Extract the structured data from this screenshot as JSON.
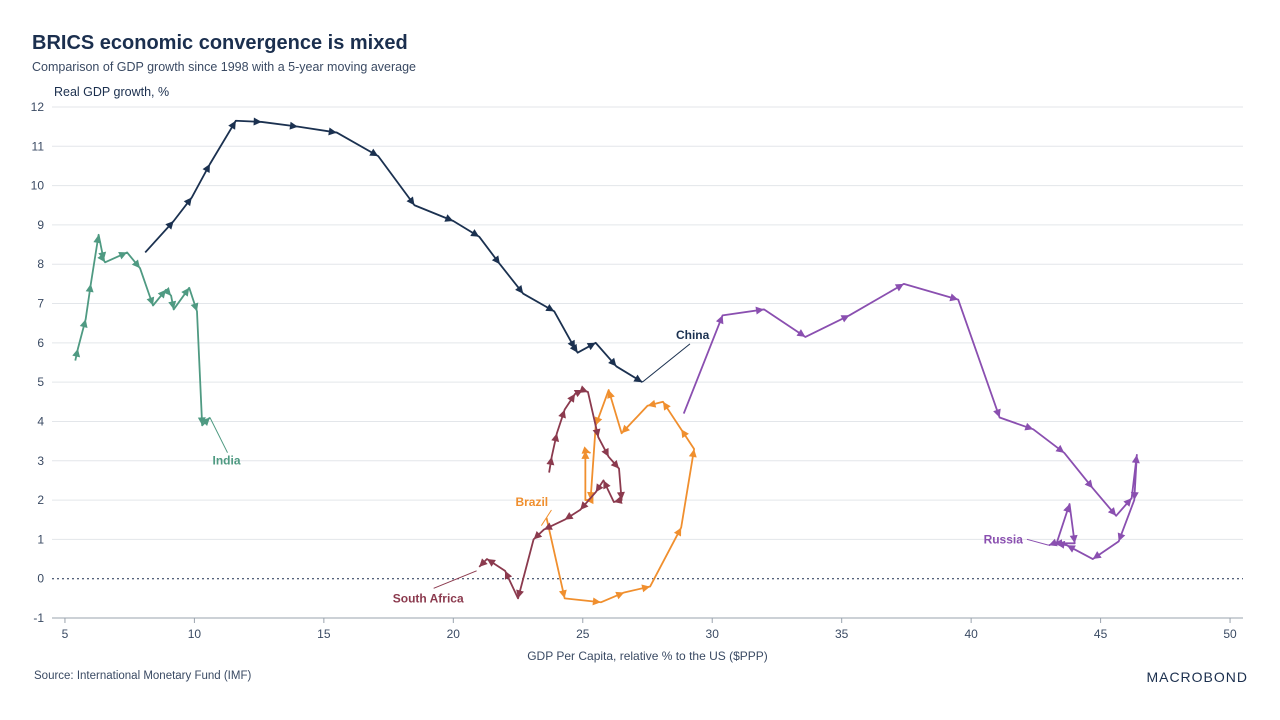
{
  "header": {
    "title": "BRICS economic convergence is mixed",
    "subtitle": "Comparison of GDP growth since 1998 with a 5-year moving average"
  },
  "footer": {
    "source": "Source: International Monetary Fund (IMF)",
    "brand": "MACROBOND"
  },
  "chart_data": {
    "type": "line",
    "title": "BRICS economic convergence is mixed",
    "subtitle": "Comparison of GDP growth since 1998 with a 5-year moving average",
    "xlabel": "GDP Per Capita, relative % to the US ($PPP)",
    "ylabel": "Real GDP growth, %",
    "xlim": [
      4.5,
      50.5
    ],
    "ylim": [
      -1,
      12
    ],
    "xticks": [
      5,
      10,
      15,
      20,
      25,
      30,
      35,
      40,
      45,
      50
    ],
    "yticks": [
      -1,
      0,
      1,
      2,
      3,
      4,
      5,
      6,
      7,
      8,
      9,
      10,
      11,
      12
    ],
    "grid": true,
    "zero_line": "dotted",
    "series": [
      {
        "name": "China",
        "color": "#1b3150",
        "points": [
          [
            8.1,
            8.3
          ],
          [
            9.2,
            9.1
          ],
          [
            9.9,
            9.7
          ],
          [
            10.6,
            10.55
          ],
          [
            11.6,
            11.65
          ],
          [
            12.6,
            11.62
          ],
          [
            14.0,
            11.5
          ],
          [
            15.5,
            11.35
          ],
          [
            17.1,
            10.75
          ],
          [
            18.5,
            9.5
          ],
          [
            20.0,
            9.1
          ],
          [
            21.0,
            8.7
          ],
          [
            21.8,
            8.0
          ],
          [
            22.7,
            7.25
          ],
          [
            23.9,
            6.8
          ],
          [
            24.7,
            5.85
          ],
          [
            24.8,
            5.75
          ],
          [
            25.5,
            6.0
          ],
          [
            26.3,
            5.4
          ],
          [
            27.3,
            5.0
          ]
        ],
        "label": "China",
        "label_at": [
          28.6,
          6.1
        ],
        "leader_to": [
          27.3,
          5.0
        ]
      },
      {
        "name": "India",
        "color": "#4f9a82",
        "points": [
          [
            5.4,
            5.55
          ],
          [
            5.5,
            5.85
          ],
          [
            5.8,
            6.6
          ],
          [
            6.0,
            7.5
          ],
          [
            6.3,
            8.75
          ],
          [
            6.5,
            8.1
          ],
          [
            6.55,
            8.05
          ],
          [
            7.4,
            8.3
          ],
          [
            7.9,
            7.9
          ],
          [
            8.4,
            6.95
          ],
          [
            8.9,
            7.35
          ],
          [
            9.1,
            7.2
          ],
          [
            9.2,
            6.85
          ],
          [
            9.8,
            7.4
          ],
          [
            10.1,
            6.8
          ],
          [
            10.3,
            3.9
          ],
          [
            10.6,
            4.1
          ]
        ],
        "label": "India",
        "label_at": [
          10.7,
          2.9
        ],
        "leader_to": [
          10.6,
          4.1
        ]
      },
      {
        "name": "Brazil",
        "color": "#f08f2e",
        "points": [
          [
            23.6,
            1.55
          ],
          [
            24.3,
            -0.5
          ],
          [
            25.7,
            -0.6
          ],
          [
            26.6,
            -0.35
          ],
          [
            27.6,
            -0.2
          ],
          [
            28.8,
            1.3
          ],
          [
            29.3,
            3.3
          ],
          [
            28.8,
            3.8
          ],
          [
            28.1,
            4.5
          ],
          [
            27.5,
            4.4
          ],
          [
            26.5,
            3.7
          ],
          [
            26.0,
            4.8
          ],
          [
            25.5,
            3.9
          ],
          [
            25.3,
            2.0
          ],
          [
            25.1,
            2.0
          ],
          [
            25.1,
            3.25
          ],
          [
            25.3,
            3.2
          ]
        ],
        "label": "Brazil",
        "label_at": [
          22.4,
          1.85
        ],
        "leader_to": [
          23.4,
          1.35
        ]
      },
      {
        "name": "South Africa",
        "color": "#8b3a4e",
        "points": [
          [
            23.7,
            2.7
          ],
          [
            23.8,
            3.1
          ],
          [
            24.0,
            3.7
          ],
          [
            24.3,
            4.3
          ],
          [
            24.7,
            4.7
          ],
          [
            25.0,
            4.8
          ],
          [
            25.2,
            4.75
          ],
          [
            25.6,
            3.6
          ],
          [
            26.0,
            3.1
          ],
          [
            26.4,
            2.8
          ],
          [
            26.5,
            2.0
          ],
          [
            26.2,
            1.95
          ],
          [
            25.8,
            2.5
          ],
          [
            25.5,
            2.2
          ],
          [
            24.9,
            1.75
          ],
          [
            24.3,
            1.5
          ],
          [
            23.5,
            1.25
          ],
          [
            23.1,
            1.0
          ],
          [
            22.5,
            -0.5
          ],
          [
            22.0,
            0.2
          ],
          [
            21.3,
            0.5
          ],
          [
            21.0,
            0.3
          ]
        ],
        "label": "South Africa",
        "label_at": [
          20.4,
          -0.6
        ],
        "leader_to": [
          20.9,
          0.2
        ]
      },
      {
        "name": "Russia",
        "color": "#8a4fb0",
        "points": [
          [
            28.9,
            4.2
          ],
          [
            30.4,
            6.7
          ],
          [
            32.0,
            6.85
          ],
          [
            33.6,
            6.15
          ],
          [
            35.3,
            6.7
          ],
          [
            37.4,
            7.5
          ],
          [
            39.5,
            7.1
          ],
          [
            41.1,
            4.1
          ],
          [
            42.4,
            3.8
          ],
          [
            43.6,
            3.2
          ],
          [
            44.7,
            2.3
          ],
          [
            45.6,
            1.6
          ],
          [
            46.2,
            2.05
          ],
          [
            46.4,
            3.15
          ],
          [
            46.3,
            2.0
          ],
          [
            45.7,
            0.95
          ],
          [
            44.7,
            0.5
          ],
          [
            43.7,
            0.85
          ],
          [
            43.3,
            0.9
          ],
          [
            43.8,
            1.9
          ],
          [
            44.0,
            0.9
          ],
          [
            43.2,
            0.9
          ],
          [
            43.0,
            0.85
          ]
        ],
        "label": "Russia",
        "label_at": [
          42.0,
          0.9
        ],
        "leader_to": [
          43.0,
          0.85
        ]
      }
    ]
  }
}
